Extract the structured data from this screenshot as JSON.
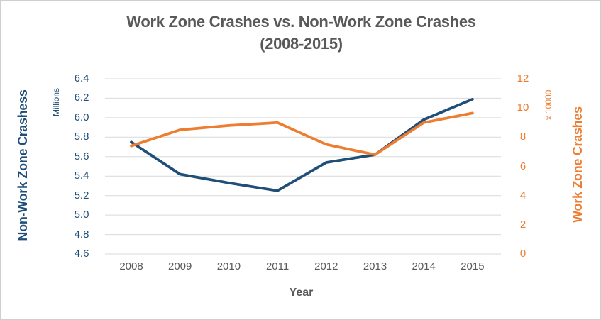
{
  "chart_data": {
    "type": "line",
    "title_line1": "Work Zone Crashes vs. Non-Work Zone Crashes",
    "title_line2": "(2008-2015)",
    "title_color": "#595959",
    "xlabel": "Year",
    "categories": [
      "2008",
      "2009",
      "2010",
      "2011",
      "2012",
      "2013",
      "2014",
      "2015"
    ],
    "left_axis": {
      "label": "Non-Work Zone Crashess",
      "unit": "Millions",
      "color": "#1F4E79",
      "range": [
        4.6,
        6.4
      ],
      "ticks": [
        "6.4",
        "6.2",
        "6.0",
        "5.8",
        "5.6",
        "5.4",
        "5.2",
        "5.0",
        "4.8",
        "4.6"
      ]
    },
    "right_axis": {
      "label": "Work Zone Crashes",
      "unit": "x 10000",
      "color": "#ED7D31",
      "range": [
        0,
        12
      ],
      "ticks": [
        "12",
        "10",
        "8",
        "6",
        "4",
        "2",
        "0"
      ]
    },
    "series": [
      {
        "name": "Non-Work Zone Crashes",
        "axis": "left",
        "color": "#1F4E79",
        "values": [
          5.75,
          5.42,
          5.33,
          5.25,
          5.54,
          5.62,
          5.98,
          6.19
        ]
      },
      {
        "name": "Work Zone Crashes",
        "axis": "right",
        "color": "#ED7D31",
        "values": [
          7.4,
          8.5,
          8.8,
          9.0,
          7.5,
          6.8,
          9.0,
          9.65
        ]
      }
    ],
    "grid": true,
    "gridline_color": "#D9D9D9",
    "legend": "none"
  }
}
